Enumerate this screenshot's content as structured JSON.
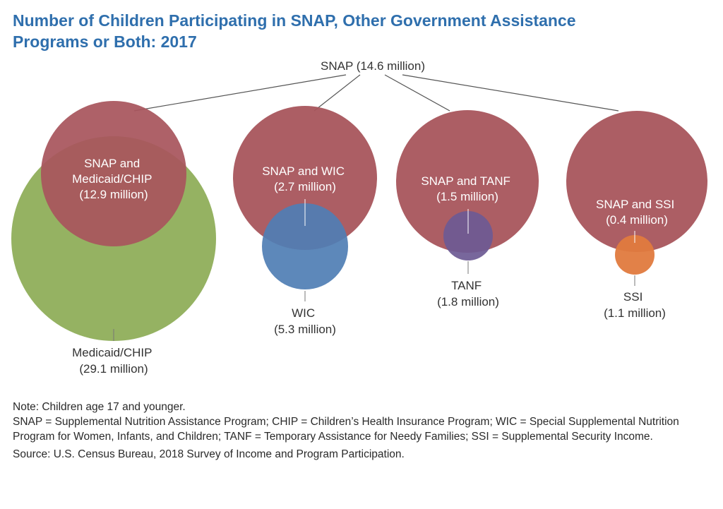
{
  "title": {
    "line1": "Number of Children Participating in SNAP, Other Government Assistance",
    "line2": "Programs or Both: 2017"
  },
  "colors": {
    "title": "#2f6fad",
    "snap": "#a8555c",
    "medicaid": "#8fae5a",
    "wic": "#4f7eb4",
    "tanf": "#6c5a94",
    "ssi": "#e07a3e",
    "overlap_text": "#ffffff"
  },
  "snap_label": "SNAP (14.6 million)",
  "groups": [
    {
      "overlap_lines": [
        "SNAP and",
        "Medicaid/CHIP",
        "(12.9 million)"
      ],
      "program_lines": [
        "Medicaid/CHIP",
        "(29.1 million)"
      ]
    },
    {
      "overlap_lines": [
        "SNAP and WIC",
        "(2.7 million)"
      ],
      "program_lines": [
        "WIC",
        "(5.3 million)"
      ]
    },
    {
      "overlap_lines": [
        "SNAP and TANF",
        "(1.5 million)"
      ],
      "program_lines": [
        "TANF",
        "(1.8 million)"
      ]
    },
    {
      "overlap_lines": [
        "SNAP and SSI",
        "(0.4 million)"
      ],
      "program_lines": [
        "SSI",
        "(1.1 million)"
      ]
    }
  ],
  "notes": {
    "note": "Note: Children age 17 and younger.",
    "definitions": "SNAP = Supplemental Nutrition Assistance Program; CHIP = Children’s Health Insurance Program; WIC = Special Supplemental Nutrition Program for Women, Infants, and Children; TANF = Temporary Assistance for Needy Families; SSI = Supplemental Security Income.",
    "source": "Source: U.S. Census Bureau, 2018 Survey of Income and Program Participation."
  }
}
